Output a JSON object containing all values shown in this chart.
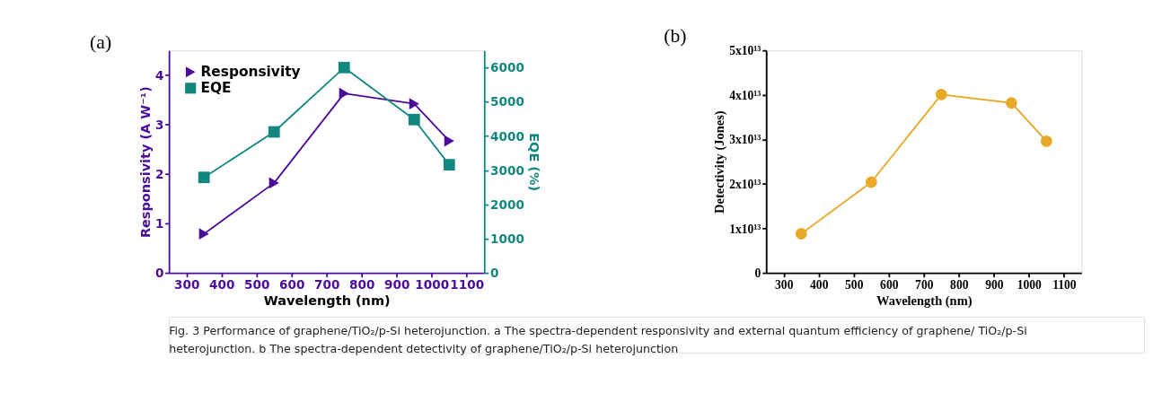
{
  "chart_data": [
    {
      "type": "line",
      "title": "(a)",
      "xlabel": "Wavelength (nm)",
      "ylabel": "Responsivity (A W⁻¹)",
      "y2label": "EQE (%)",
      "x": [
        350,
        550,
        750,
        950,
        1050
      ],
      "xlim": [
        250,
        1150
      ],
      "xticks": [
        300,
        400,
        500,
        600,
        700,
        800,
        900,
        1000,
        1100
      ],
      "ylim": [
        0,
        4.5
      ],
      "yticks": [
        0,
        1,
        2,
        3,
        4
      ],
      "y2lim": [
        0,
        6500
      ],
      "y2ticks": [
        0,
        1000,
        2000,
        3000,
        4000,
        5000,
        6000
      ],
      "legend": "top left",
      "grid": false,
      "line_style": "solid",
      "series": [
        {
          "name": "Responsivity",
          "color": "#4b0c9c",
          "marker": "triangle",
          "values": [
            0.79,
            1.82,
            3.63,
            3.42,
            2.67
          ]
        },
        {
          "name": "EQE",
          "color": "#12877f",
          "marker": "square",
          "axis": "y2",
          "values": [
            2790,
            4120,
            6000,
            4480,
            3160
          ]
        }
      ],
      "annotations": [
        "Fig. 3  Performance of graphene/TiO₂/p-Si heterojunction. a The spectra-dependent responsivity and external quantum efficiency of graphene/ TiO₂/p-Si heterojunction. b The spectra-dependent detectivity of graphene/TiO₂/p-Si heterojunction"
      ]
    },
    {
      "type": "line",
      "title": "(b)",
      "xlabel": "Wavelength (nm)",
      "ylabel": "Detectivity (Jones)",
      "x": [
        350,
        550,
        750,
        950,
        1050
      ],
      "xlim": [
        250,
        1150
      ],
      "xticks": [
        300,
        400,
        500,
        600,
        700,
        800,
        900,
        1000,
        1100
      ],
      "ylim": [
        0,
        50000000000000.0
      ],
      "yticks": [
        0,
        {
          "value": 10000000000000.0,
          "label": "1x10¹³"
        },
        {
          "value": 20000000000000.0,
          "label": "2x10¹³"
        },
        {
          "value": 30000000000000.0,
          "label": "3x10¹³"
        },
        {
          "value": 40000000000000.0,
          "label": "4x10¹³"
        },
        {
          "value": 50000000000000.0,
          "label": "5x10¹³"
        }
      ],
      "grid": false,
      "line_style": "solid",
      "marker": "circle",
      "series": [
        {
          "color": "#e8a928",
          "values": [
            8800000000000.0,
            20400000000000.0,
            40100000000000.0,
            38200000000000.0,
            29600000000000.0
          ]
        }
      ]
    }
  ]
}
